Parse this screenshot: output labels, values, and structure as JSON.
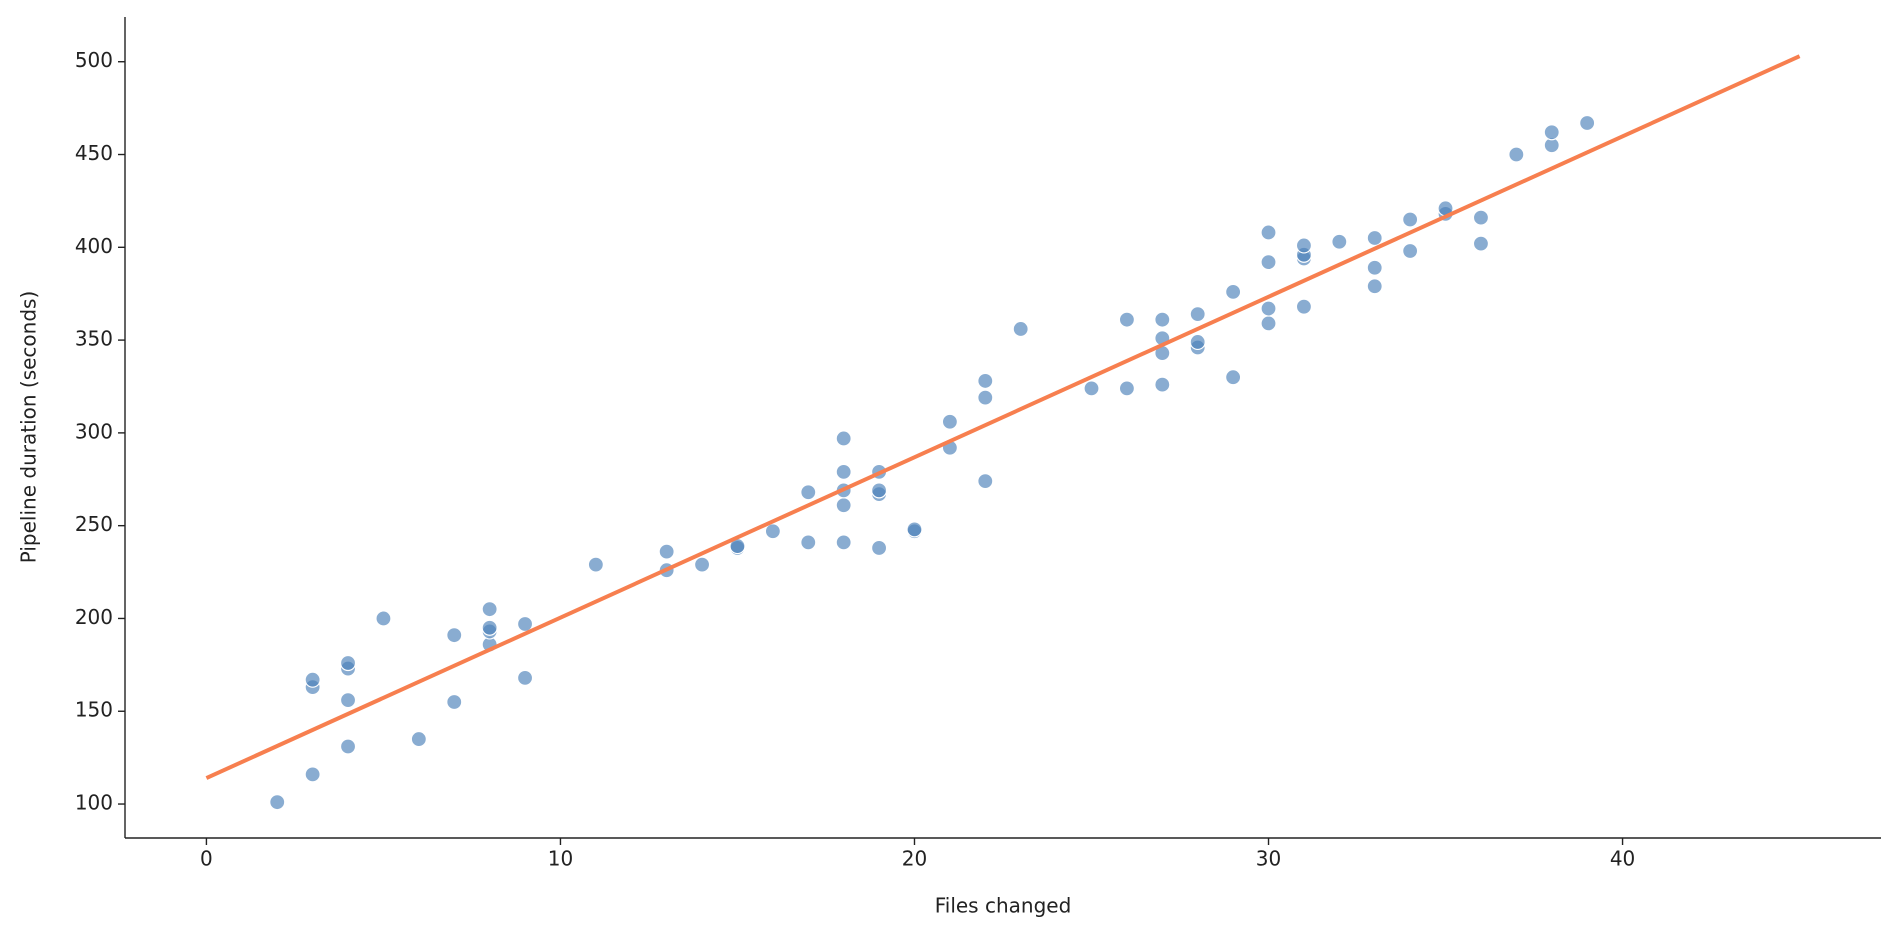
{
  "chart_data": {
    "type": "scatter",
    "x_label": "Files changed",
    "y_label": "Pipeline duration (seconds)",
    "points": {
      "color": "#4a80b8",
      "x": [
        2,
        3,
        3,
        3,
        4,
        4,
        4,
        4,
        5,
        6,
        7,
        7,
        8,
        8,
        8,
        8,
        9,
        9,
        11,
        13,
        13,
        14,
        15,
        15,
        16,
        17,
        17,
        18,
        18,
        18,
        18,
        18,
        19,
        19,
        19,
        19,
        20,
        20,
        21,
        21,
        22,
        22,
        22,
        23,
        25,
        26,
        26,
        27,
        27,
        27,
        27,
        28,
        28,
        28,
        29,
        29,
        30,
        30,
        30,
        30,
        31,
        31,
        31,
        31,
        32,
        33,
        33,
        33,
        34,
        34,
        35,
        35,
        36,
        36,
        37,
        38,
        38,
        39
      ],
      "y": [
        101,
        116,
        163,
        167,
        131,
        156,
        173,
        176,
        200,
        135,
        155,
        191,
        186,
        193,
        195,
        205,
        168,
        197,
        229,
        226,
        236,
        229,
        238,
        239,
        247,
        241,
        268,
        241,
        261,
        269,
        279,
        297,
        238,
        267,
        269,
        279,
        247,
        248,
        292,
        306,
        274,
        319,
        328,
        356,
        324,
        324,
        361,
        326,
        343,
        351,
        361,
        346,
        349,
        364,
        330,
        376,
        359,
        367,
        392,
        408,
        368,
        394,
        396,
        401,
        403,
        379,
        389,
        405,
        398,
        415,
        418,
        421,
        402,
        416,
        450,
        455,
        462,
        467
      ]
    },
    "fit_line": {
      "color": "#f77f4f",
      "x": [
        0,
        45
      ],
      "y": [
        114,
        503
      ]
    },
    "xlim": [
      -2.3,
      47.3
    ],
    "ylim": [
      81.7,
      524.1
    ],
    "xticks": [
      0,
      10,
      20,
      30,
      40
    ],
    "yticks": [
      100,
      150,
      200,
      250,
      300,
      350,
      400,
      450,
      500
    ]
  }
}
